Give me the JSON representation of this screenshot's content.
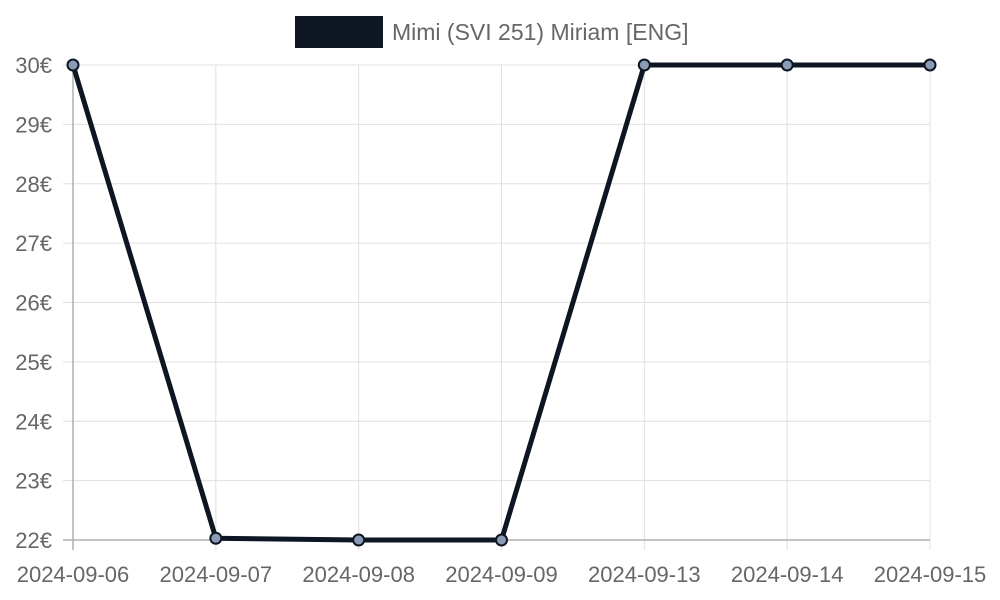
{
  "chart_data": {
    "type": "line",
    "categories": [
      "2024-09-06",
      "2024-09-07",
      "2024-09-08",
      "2024-09-09",
      "2024-09-13",
      "2024-09-14",
      "2024-09-15"
    ],
    "series": [
      {
        "name": "Mimi (SVI 251) Miriam [ENG]",
        "values": [
          30,
          22.03,
          22,
          22,
          30,
          30,
          30
        ],
        "color": "#0f1623"
      }
    ],
    "y_ticks": [
      22,
      23,
      24,
      25,
      26,
      27,
      28,
      29,
      30
    ],
    "y_tick_suffix": "€",
    "ylim": [
      22,
      30
    ],
    "grid": true,
    "legend_position": "top-center",
    "point_fill": "#8a9bb5"
  }
}
